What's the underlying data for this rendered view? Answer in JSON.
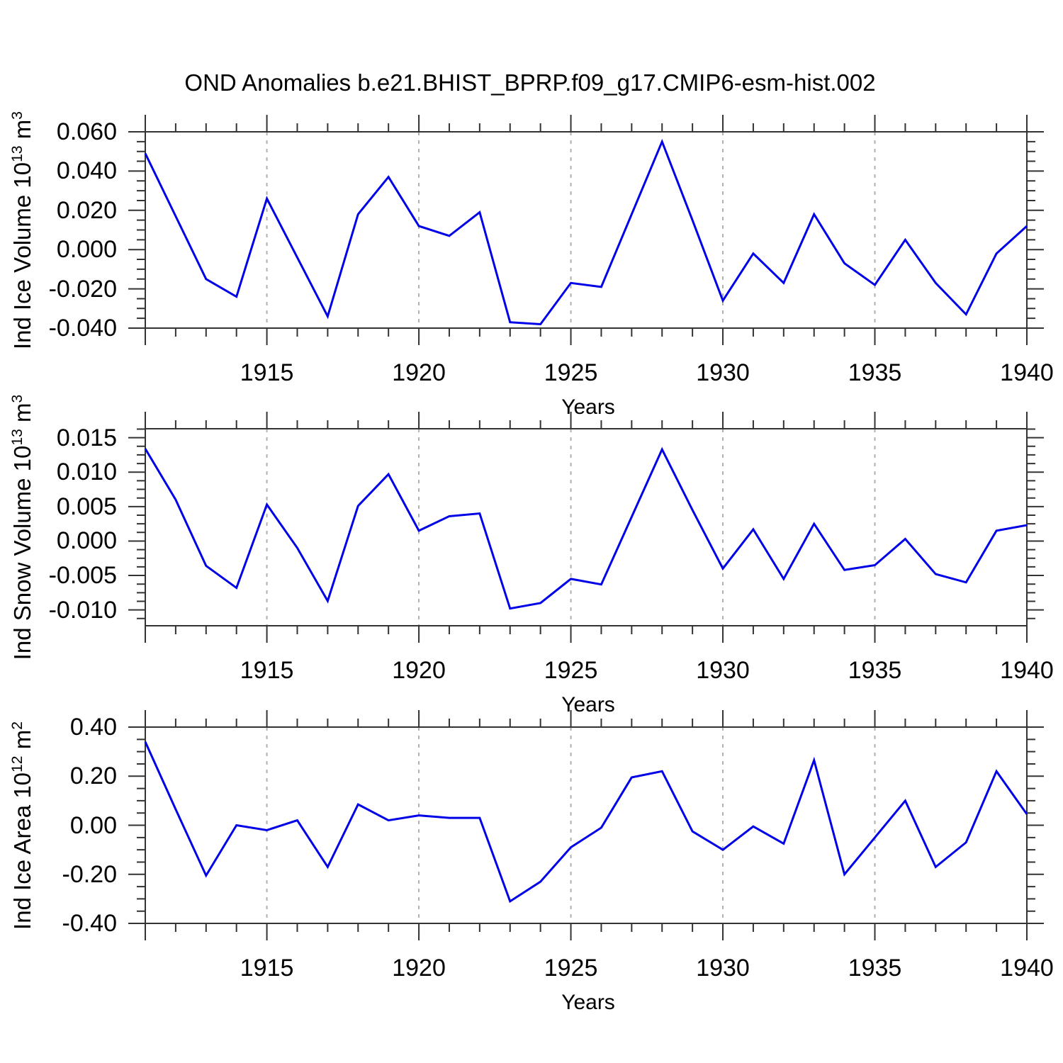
{
  "title": "OND Anomalies b.e21.BHIST_BPRP.f09_g17.CMIP6-esm-hist.002",
  "colors": {
    "line": "#0000e8",
    "frame": "#333333",
    "tick": "#333333",
    "grid": "#b0b0b0",
    "text": "#000000"
  },
  "chart_data": [
    {
      "type": "line",
      "name": "ind-ice-volume",
      "ylabel_parts": [
        {
          "t": "Ind Ice Volume 10"
        },
        {
          "sup": "13"
        },
        {
          "t": " m"
        },
        {
          "sup": "3"
        }
      ],
      "xlabel": "Years",
      "x": [
        1911,
        1912,
        1913,
        1914,
        1915,
        1916,
        1917,
        1918,
        1919,
        1920,
        1921,
        1922,
        1923,
        1924,
        1925,
        1926,
        1927,
        1928,
        1929,
        1930,
        1931,
        1932,
        1933,
        1934,
        1935,
        1936,
        1937,
        1938,
        1939,
        1940
      ],
      "values": [
        0.049,
        0.017,
        -0.015,
        -0.024,
        0.026,
        -0.004,
        -0.034,
        0.018,
        0.037,
        0.012,
        0.007,
        0.019,
        -0.037,
        -0.038,
        -0.017,
        -0.019,
        0.018,
        0.055,
        0.015,
        -0.026,
        -0.002,
        -0.017,
        0.018,
        -0.007,
        -0.018,
        0.005,
        -0.017,
        -0.033,
        -0.002,
        0.012
      ],
      "xlim": [
        1911,
        1940
      ],
      "ylim": [
        -0.04,
        0.06
      ],
      "yticks_major": [
        0.06,
        0.04,
        0.02,
        0.0,
        -0.02,
        -0.04
      ],
      "ytick_labels": [
        "0.060",
        "0.040",
        "0.020",
        "0.000",
        "-0.020",
        "-0.040"
      ],
      "ytick_minor_step": 0.005,
      "xticks_major": [
        1915,
        1920,
        1925,
        1930,
        1935,
        1940
      ],
      "xtick_labels": [
        "1915",
        "1920",
        "1925",
        "1930",
        "1935",
        "1940"
      ],
      "grid_years": [
        1915,
        1920,
        1925,
        1930,
        1935
      ],
      "grid": "vertical-dashed"
    },
    {
      "type": "line",
      "name": "ind-snow-volume",
      "ylabel_parts": [
        {
          "t": "Ind Snow Volume 10"
        },
        {
          "sup": "13"
        },
        {
          "t": " m"
        },
        {
          "sup": "3"
        }
      ],
      "xlabel": "Years",
      "x": [
        1911,
        1912,
        1913,
        1914,
        1915,
        1916,
        1917,
        1918,
        1919,
        1920,
        1921,
        1922,
        1923,
        1924,
        1925,
        1926,
        1927,
        1928,
        1929,
        1930,
        1931,
        1932,
        1933,
        1934,
        1935,
        1936,
        1937,
        1938,
        1939,
        1940
      ],
      "values": [
        0.0134,
        0.006,
        -0.0036,
        -0.0068,
        0.0053,
        -0.001,
        -0.0087,
        0.0051,
        0.0097,
        0.0015,
        0.0036,
        0.004,
        -0.0098,
        -0.009,
        -0.0055,
        -0.0063,
        0.0035,
        0.0133,
        0.0045,
        -0.004,
        0.0017,
        -0.0055,
        0.0025,
        -0.0042,
        -0.0035,
        0.0003,
        -0.0048,
        -0.006,
        0.0015,
        0.0023
      ],
      "xlim": [
        1911,
        1940
      ],
      "ylim": [
        -0.0123,
        0.0163
      ],
      "yticks_major": [
        0.015,
        0.01,
        0.005,
        0.0,
        -0.005,
        -0.01
      ],
      "ytick_labels": [
        "0.015",
        "0.010",
        "0.005",
        "0.000",
        "-0.005",
        "-0.010"
      ],
      "ytick_minor_step": 0.00125,
      "xticks_major": [
        1915,
        1920,
        1925,
        1930,
        1935,
        1940
      ],
      "xtick_labels": [
        "1915",
        "1920",
        "1925",
        "1930",
        "1935",
        "1940"
      ],
      "grid_years": [
        1915,
        1920,
        1925,
        1930,
        1935
      ],
      "grid": "vertical-dashed"
    },
    {
      "type": "line",
      "name": "ind-ice-area",
      "ylabel_parts": [
        {
          "t": "Ind Ice Area 10"
        },
        {
          "sup": "12"
        },
        {
          "t": " m"
        },
        {
          "sup": "2"
        }
      ],
      "xlabel": "Years",
      "x": [
        1911,
        1912,
        1913,
        1914,
        1915,
        1916,
        1917,
        1918,
        1919,
        1920,
        1921,
        1922,
        1923,
        1924,
        1925,
        1926,
        1927,
        1928,
        1929,
        1930,
        1931,
        1932,
        1933,
        1934,
        1935,
        1936,
        1937,
        1938,
        1939,
        1940
      ],
      "values": [
        0.34,
        0.065,
        -0.205,
        0.0,
        -0.02,
        0.02,
        -0.17,
        0.085,
        0.02,
        0.04,
        0.03,
        0.03,
        -0.31,
        -0.23,
        -0.09,
        -0.01,
        0.195,
        0.22,
        -0.025,
        -0.1,
        -0.005,
        -0.075,
        0.265,
        -0.2,
        -0.05,
        0.1,
        -0.17,
        -0.07,
        0.22,
        0.045
      ],
      "xlim": [
        1911,
        1940
      ],
      "ylim": [
        -0.4,
        0.4
      ],
      "yticks_major": [
        0.4,
        0.2,
        0.0,
        -0.2,
        -0.4
      ],
      "ytick_labels": [
        "0.40",
        "0.20",
        "0.00",
        "-0.20",
        "-0.40"
      ],
      "ytick_minor_step": 0.05,
      "xticks_major": [
        1915,
        1920,
        1925,
        1930,
        1935,
        1940
      ],
      "xtick_labels": [
        "1915",
        "1920",
        "1925",
        "1930",
        "1935",
        "1940"
      ],
      "grid_years": [
        1915,
        1920,
        1925,
        1930,
        1935
      ],
      "grid": "vertical-dashed"
    }
  ]
}
